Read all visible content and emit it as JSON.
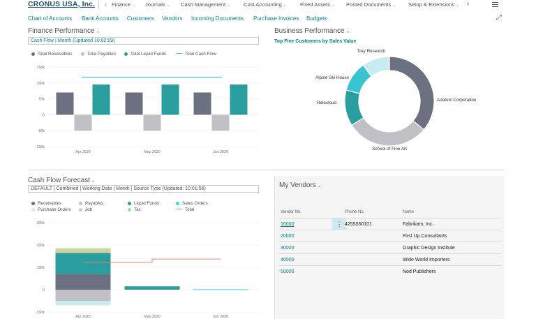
{
  "header": {
    "company": "CRONUS USA, Inc.",
    "nav": [
      {
        "label": "Finance"
      },
      {
        "label": "Journals"
      },
      {
        "label": "Cash Management"
      },
      {
        "label": "Cost Accounting"
      },
      {
        "label": "Fixed Assets"
      },
      {
        "label": "Posted Documents"
      },
      {
        "label": "Setup & Extensions"
      }
    ],
    "links": [
      "Chart of Accounts",
      "Bank Accounts",
      "Customers",
      "Vendors",
      "Incoming Documents",
      "Purchase Invoices",
      "Budgets"
    ]
  },
  "finance": {
    "title": "Finance Performance",
    "subtitle": "Cash Flow | Month (Updated 10:02:09)",
    "legend": [
      "Total Receivables",
      "Total Payables",
      "Total Liquid Funds",
      "Total Cash Flow"
    ]
  },
  "business": {
    "title": "Business Performance",
    "subtitle": "Top Five Customers by Sales Value"
  },
  "cashflow": {
    "title": "Cash Flow Forecast",
    "subtitle": "DEFAULT | Combined | Working Date | Month | Source Type (Updated: 10:01:56)",
    "legend": [
      "Receivables",
      "Payables",
      "Liquid Funds",
      "Sales Orders",
      "Purchase Orders",
      "Job",
      "Tax",
      "Total"
    ]
  },
  "vendors": {
    "title": "My Vendors",
    "columns": [
      "Vendor No.",
      "Phone No.",
      "Name"
    ],
    "rows": [
      {
        "no": "10000",
        "phone": "4255550101",
        "name": "Fabrikam, Inc."
      },
      {
        "no": "20000",
        "phone": "",
        "name": "First Up Consultants"
      },
      {
        "no": "30000",
        "phone": "",
        "name": "Graphic Design Institute"
      },
      {
        "no": "40000",
        "phone": "",
        "name": "Wide World Importers"
      },
      {
        "no": "50000",
        "phone": "",
        "name": "Nod Publishers"
      }
    ]
  },
  "colors": {
    "receivables": "#6b7180",
    "payables": "#c0c0c6",
    "liquid": "#2a9d9f",
    "cashflow_line": "#45c1d6",
    "sales_orders": "#3fd0d5",
    "purchase_orders": "#c9ecf1",
    "job": "#d6cf9a",
    "tax": "#a8d79a",
    "total": "#e08a6a"
  },
  "chart_data": [
    {
      "type": "bar",
      "title": "Finance Performance",
      "categories": [
        "Apr 2020",
        "May 2020",
        "Jun 2020"
      ],
      "y_ticks": [
        "150k",
        "100k",
        "50k",
        "0",
        "-50k",
        "-100k"
      ],
      "ylim": [
        -100000,
        150000
      ],
      "series": [
        {
          "name": "Total Receivables",
          "values": [
            70000,
            70000,
            70000
          ]
        },
        {
          "name": "Total Payables",
          "values": [
            -50000,
            -50000,
            -50000
          ]
        },
        {
          "name": "Total Liquid Funds",
          "values": [
            95000,
            95000,
            95000
          ]
        },
        {
          "name": "Total Cash Flow",
          "type": "line",
          "values": [
            118000,
            118000,
            118000
          ]
        }
      ]
    },
    {
      "type": "pie",
      "title": "Top Five Customers by Sales Value",
      "categories": [
        "Adatum Corporation",
        "School of Fine Art",
        "Relecloud",
        "Alpine Ski House",
        "Trey Research"
      ],
      "values": [
        36,
        30,
        13,
        11,
        10
      ]
    },
    {
      "type": "bar",
      "title": "Cash Flow Forecast",
      "categories": [
        "Apr 2020",
        "May 2020",
        "Jun 2020"
      ],
      "y_ticks": [
        "300k",
        "200k",
        "100k",
        "0",
        "-100k"
      ],
      "ylim": [
        -100000,
        300000
      ],
      "series": [
        {
          "name": "Receivables",
          "values": [
            70000,
            0,
            0
          ]
        },
        {
          "name": "Payables",
          "values": [
            -50000,
            0,
            0
          ]
        },
        {
          "name": "Liquid Funds",
          "values": [
            95000,
            15000,
            0
          ]
        },
        {
          "name": "Sales Orders",
          "values": [
            0,
            0,
            2000
          ]
        },
        {
          "name": "Purchase Orders",
          "values": [
            -20000,
            0,
            0
          ]
        },
        {
          "name": "Job",
          "values": [
            15000,
            0,
            0
          ]
        },
        {
          "name": "Tax",
          "values": [
            5000,
            0,
            0
          ]
        },
        {
          "name": "Total",
          "type": "line",
          "values": [
            122000,
            137000,
            137000
          ]
        }
      ]
    }
  ]
}
